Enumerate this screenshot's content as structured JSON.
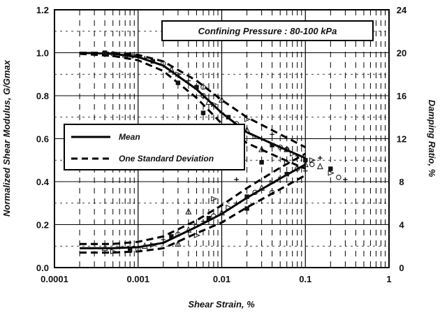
{
  "chart_data": {
    "type": "scatter",
    "annotation": "Confining Pressure : 80-100 kPa",
    "xlabel": "Shear Strain, %",
    "ylabel_left": "Normalized Shear Modulus, G/Gmax",
    "ylabel_right": "Damping Ratio, %",
    "x_scale": "log",
    "xlim": [
      0.0001,
      1
    ],
    "ylim_left": [
      0,
      1.2
    ],
    "ylim_right": [
      0,
      24
    ],
    "grid": true,
    "legend_position": "middle-left",
    "x_ticks": [
      "0.0001",
      "0.001",
      "0.01",
      "0.1",
      "1"
    ],
    "y_left_ticks": [
      "0.0",
      "0.2",
      "0.4",
      "0.6",
      "0.8",
      "1.0",
      "1.2"
    ],
    "y_right_ticks": [
      "0",
      "4",
      "8",
      "12",
      "16",
      "20",
      "24"
    ],
    "legend": [
      {
        "label": "Mean",
        "style": "solid"
      },
      {
        "label": "One Standard Deviation",
        "style": "dashed"
      }
    ],
    "modulus_curves": {
      "x": [
        0.0002,
        0.0005,
        0.001,
        0.002,
        0.005,
        0.01,
        0.02,
        0.05,
        0.1
      ],
      "mean": [
        1.0,
        0.995,
        0.98,
        0.94,
        0.83,
        0.72,
        0.63,
        0.56,
        0.51
      ],
      "upper": [
        1.0,
        1.0,
        0.99,
        0.96,
        0.87,
        0.78,
        0.7,
        0.62,
        0.56
      ],
      "lower": [
        0.995,
        0.985,
        0.965,
        0.915,
        0.79,
        0.67,
        0.58,
        0.51,
        0.46
      ]
    },
    "damping_curves": {
      "x": [
        0.0002,
        0.0005,
        0.001,
        0.002,
        0.005,
        0.01,
        0.02,
        0.05,
        0.1
      ],
      "mean": [
        1.8,
        1.8,
        1.9,
        2.3,
        3.8,
        5.0,
        6.5,
        8.3,
        9.6
      ],
      "upper": [
        2.2,
        2.2,
        2.4,
        2.9,
        4.4,
        5.8,
        7.4,
        9.3,
        10.6
      ],
      "lower": [
        1.4,
        1.4,
        1.5,
        1.8,
        3.2,
        4.2,
        5.6,
        7.3,
        8.6
      ]
    },
    "modulus_points": [
      [
        0.0004,
        1.0
      ],
      [
        0.0005,
        0.995
      ],
      [
        0.0007,
        0.99
      ],
      [
        0.0009,
        0.985
      ],
      [
        0.0012,
        0.975
      ],
      [
        0.0015,
        0.96
      ],
      [
        0.002,
        0.95
      ],
      [
        0.0025,
        0.92
      ],
      [
        0.003,
        0.9
      ],
      [
        0.004,
        0.87
      ],
      [
        0.005,
        0.84
      ],
      [
        0.006,
        0.8
      ],
      [
        0.007,
        0.77
      ],
      [
        0.008,
        0.76
      ],
      [
        0.01,
        0.72
      ],
      [
        0.012,
        0.7
      ],
      [
        0.015,
        0.67
      ],
      [
        0.02,
        0.64
      ],
      [
        0.025,
        0.61
      ],
      [
        0.03,
        0.6
      ],
      [
        0.04,
        0.57
      ],
      [
        0.05,
        0.56
      ],
      [
        0.06,
        0.55
      ],
      [
        0.07,
        0.53
      ],
      [
        0.08,
        0.52
      ],
      [
        0.1,
        0.5
      ],
      [
        0.12,
        0.48
      ],
      [
        0.15,
        0.47
      ],
      [
        0.2,
        0.44
      ],
      [
        0.3,
        0.41
      ],
      [
        0.003,
        0.86
      ],
      [
        0.006,
        0.84
      ],
      [
        0.01,
        0.78
      ],
      [
        0.02,
        0.69
      ],
      [
        0.04,
        0.62
      ],
      [
        0.006,
        0.72
      ],
      [
        0.012,
        0.64
      ],
      [
        0.03,
        0.55
      ],
      [
        0.06,
        0.49
      ],
      [
        0.1,
        0.45
      ]
    ],
    "damping_points": [
      [
        0.0004,
        1.8
      ],
      [
        0.0005,
        1.5
      ],
      [
        0.0006,
        1.9
      ],
      [
        0.0008,
        1.6
      ],
      [
        0.001,
        1.7
      ],
      [
        0.0012,
        2.0
      ],
      [
        0.0015,
        2.1
      ],
      [
        0.002,
        2.6
      ],
      [
        0.0025,
        2.9
      ],
      [
        0.003,
        3.1
      ],
      [
        0.004,
        3.5
      ],
      [
        0.005,
        3.9
      ],
      [
        0.006,
        4.3
      ],
      [
        0.007,
        4.6
      ],
      [
        0.008,
        4.8
      ],
      [
        0.01,
        5.1
      ],
      [
        0.012,
        5.6
      ],
      [
        0.015,
        6.0
      ],
      [
        0.02,
        6.6
      ],
      [
        0.025,
        7.0
      ],
      [
        0.03,
        7.4
      ],
      [
        0.04,
        7.9
      ],
      [
        0.05,
        8.4
      ],
      [
        0.06,
        8.7
      ],
      [
        0.08,
        9.2
      ],
      [
        0.1,
        9.6
      ],
      [
        0.12,
        10.0
      ],
      [
        0.15,
        10.2
      ],
      [
        0.2,
        9.2
      ],
      [
        0.25,
        8.4
      ],
      [
        0.003,
        2.2
      ],
      [
        0.005,
        3.0
      ],
      [
        0.01,
        4.2
      ],
      [
        0.02,
        5.5
      ],
      [
        0.04,
        7.0
      ],
      [
        0.004,
        5.2
      ],
      [
        0.008,
        6.4
      ],
      [
        0.015,
        8.2
      ],
      [
        0.03,
        9.8
      ],
      [
        0.06,
        11.0
      ]
    ]
  }
}
